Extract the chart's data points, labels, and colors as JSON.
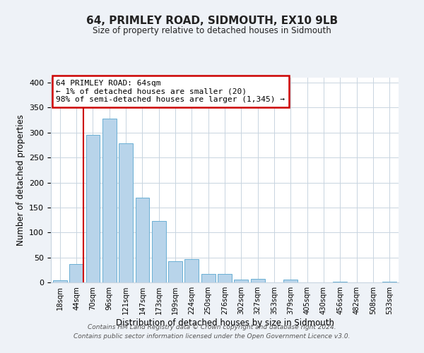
{
  "title": "64, PRIMLEY ROAD, SIDMOUTH, EX10 9LB",
  "subtitle": "Size of property relative to detached houses in Sidmouth",
  "xlabel": "Distribution of detached houses by size in Sidmouth",
  "ylabel": "Number of detached properties",
  "bar_labels": [
    "18sqm",
    "44sqm",
    "70sqm",
    "96sqm",
    "121sqm",
    "147sqm",
    "173sqm",
    "199sqm",
    "224sqm",
    "250sqm",
    "276sqm",
    "302sqm",
    "327sqm",
    "353sqm",
    "379sqm",
    "405sqm",
    "430sqm",
    "456sqm",
    "482sqm",
    "508sqm",
    "533sqm"
  ],
  "bar_heights": [
    4,
    37,
    295,
    328,
    279,
    169,
    123,
    42,
    46,
    17,
    17,
    5,
    7,
    0,
    6,
    0,
    0,
    2,
    0,
    0,
    2
  ],
  "bar_color": "#b8d4ea",
  "bar_edge_color": "#6aafd4",
  "vline_color": "#cc0000",
  "annotation_text": "64 PRIMLEY ROAD: 64sqm\n← 1% of detached houses are smaller (20)\n98% of semi-detached houses are larger (1,345) →",
  "annotation_box_color": "#ffffff",
  "annotation_box_edge": "#cc0000",
  "ylim": [
    0,
    410
  ],
  "footer_line1": "Contains HM Land Registry data © Crown copyright and database right 2024.",
  "footer_line2": "Contains public sector information licensed under the Open Government Licence v3.0.",
  "bg_color": "#eef2f7",
  "plot_bg_color": "#ffffff",
  "grid_color": "#c8d4e0"
}
